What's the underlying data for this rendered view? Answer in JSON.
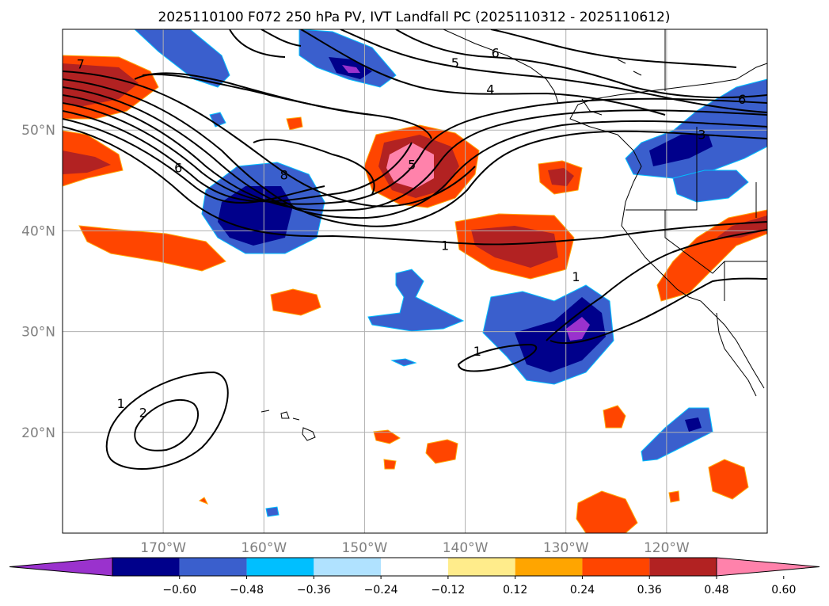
{
  "title": "2025110100 F072 250 hPa PV, IVT Landfall PC (2025110312 - 2025110612)",
  "x_ticks": [
    {
      "lon": -170,
      "label": "170°W"
    },
    {
      "lon": -160,
      "label": "160°W"
    },
    {
      "lon": -150,
      "label": "150°W"
    },
    {
      "lon": -140,
      "label": "140°W"
    },
    {
      "lon": -130,
      "label": "130°W"
    },
    {
      "lon": -120,
      "label": "120°W"
    }
  ],
  "y_ticks": [
    {
      "lat": 50,
      "label": "50°N"
    },
    {
      "lat": 40,
      "label": "40°N"
    },
    {
      "lat": 30,
      "label": "30°N"
    },
    {
      "lat": 20,
      "label": "20°N"
    }
  ],
  "extent": {
    "lon_min": -180,
    "lon_max": -110,
    "lat_min": 10,
    "lat_max": 60
  },
  "colorbar": {
    "colors": [
      "#9a32cd",
      "#00008b",
      "#3a5fcd",
      "#00bfff",
      "#b0e2ff",
      "#ffffff",
      "#ffec8b",
      "#ffa500",
      "#ff4500",
      "#b22222",
      "#ff82ab"
    ],
    "tick_labels": [
      "−0.60",
      "−0.48",
      "−0.36",
      "−0.24",
      "−0.12",
      "0.12",
      "0.24",
      "0.36",
      "0.48",
      "0.60"
    ]
  },
  "contour_labels": [
    {
      "text": "7",
      "lon": -178.2,
      "lat": 56.5
    },
    {
      "text": "6",
      "lon": -168.5,
      "lat": 46.2
    },
    {
      "text": "8",
      "lon": -158.0,
      "lat": 45.5
    },
    {
      "text": "5",
      "lon": -145.3,
      "lat": 46.5
    },
    {
      "text": "6",
      "lon": -137.0,
      "lat": 57.6
    },
    {
      "text": "5",
      "lon": -141.0,
      "lat": 56.6
    },
    {
      "text": "4",
      "lon": -137.5,
      "lat": 54.0
    },
    {
      "text": "6",
      "lon": -112.5,
      "lat": 53.0
    },
    {
      "text": "3",
      "lon": -116.5,
      "lat": 49.5
    },
    {
      "text": "1",
      "lon": -142.0,
      "lat": 38.5
    },
    {
      "text": "1",
      "lon": -129.0,
      "lat": 35.4
    },
    {
      "text": "1",
      "lon": -138.8,
      "lat": 28.0
    },
    {
      "text": "1",
      "lon": -174.2,
      "lat": 22.8
    },
    {
      "text": "2",
      "lon": -172.0,
      "lat": 21.9
    }
  ]
}
